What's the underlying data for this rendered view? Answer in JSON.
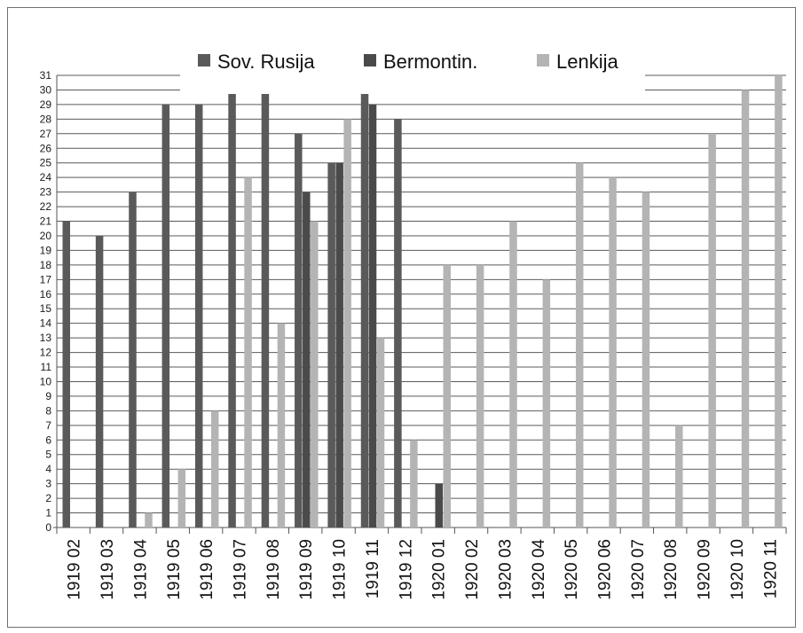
{
  "chart_data": {
    "type": "bar",
    "title": "",
    "xlabel": "",
    "ylabel": "",
    "ylim": [
      0,
      31
    ],
    "y_ticks": [
      0,
      1,
      2,
      3,
      4,
      5,
      6,
      7,
      8,
      9,
      10,
      11,
      12,
      13,
      14,
      15,
      16,
      17,
      18,
      19,
      20,
      21,
      22,
      23,
      24,
      25,
      26,
      27,
      28,
      29,
      30,
      31
    ],
    "grid": true,
    "legend_placement": "top",
    "categories": [
      "1919 02",
      "1919 03",
      "1919 04",
      "1919 05",
      "1919 06",
      "1919 07",
      "1919 08",
      "1919 09",
      "1919 10",
      "1919 11",
      "1919 12",
      "1920 01",
      "1920 02",
      "1920 03",
      "1920 04",
      "1920 05",
      "1920 06",
      "1920 07",
      "1920 08",
      "1920 09",
      "1920 10",
      "1920 11"
    ],
    "series": [
      {
        "name": "Sov. Rusija",
        "color": "#5a5a5a",
        "values": [
          21,
          20,
          23,
          29,
          29,
          30,
          31,
          27,
          25,
          31,
          28,
          null,
          null,
          null,
          null,
          null,
          null,
          null,
          null,
          null,
          null,
          null
        ]
      },
      {
        "name": "Bermontin.",
        "color": "#4a4a4a",
        "values": [
          null,
          null,
          null,
          null,
          null,
          null,
          null,
          23,
          25,
          29,
          null,
          3,
          null,
          null,
          null,
          null,
          null,
          null,
          null,
          null,
          null,
          null
        ]
      },
      {
        "name": "Lenkija",
        "color": "#b4b4b4",
        "values": [
          null,
          null,
          1,
          4,
          8,
          24,
          14,
          21,
          28,
          13,
          6,
          18,
          18,
          21,
          17,
          25,
          24,
          23,
          7,
          27,
          30,
          31
        ]
      }
    ]
  }
}
